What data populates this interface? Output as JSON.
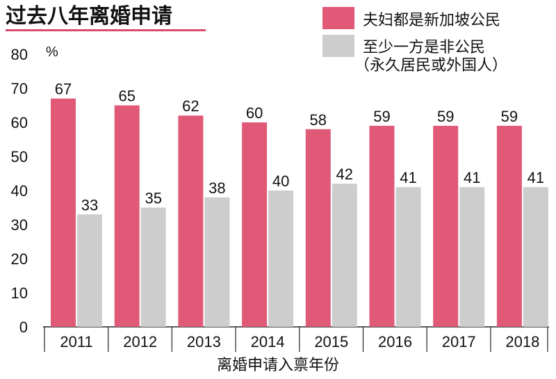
{
  "chart_data": {
    "type": "bar",
    "title": "过去八年离婚申请",
    "unit": "%",
    "xlabel": "离婚申请入禀年份",
    "ylabel": "",
    "ylim": [
      0,
      80
    ],
    "yticks": [
      0,
      10,
      20,
      30,
      40,
      50,
      60,
      70,
      80
    ],
    "categories": [
      "2011",
      "2012",
      "2013",
      "2014",
      "2015",
      "2016",
      "2017",
      "2018"
    ],
    "series": [
      {
        "name": "夫妇都是新加坡公民",
        "color": "#e05a78",
        "values": [
          67,
          65,
          62,
          60,
          58,
          59,
          59,
          59
        ]
      },
      {
        "name": "至少一方是非公民",
        "name_line2": "（永久居民或外国人）",
        "color": "#cdcdcd",
        "values": [
          33,
          35,
          38,
          40,
          42,
          41,
          41,
          41
        ]
      }
    ],
    "legend": "top-right",
    "grid": false
  }
}
